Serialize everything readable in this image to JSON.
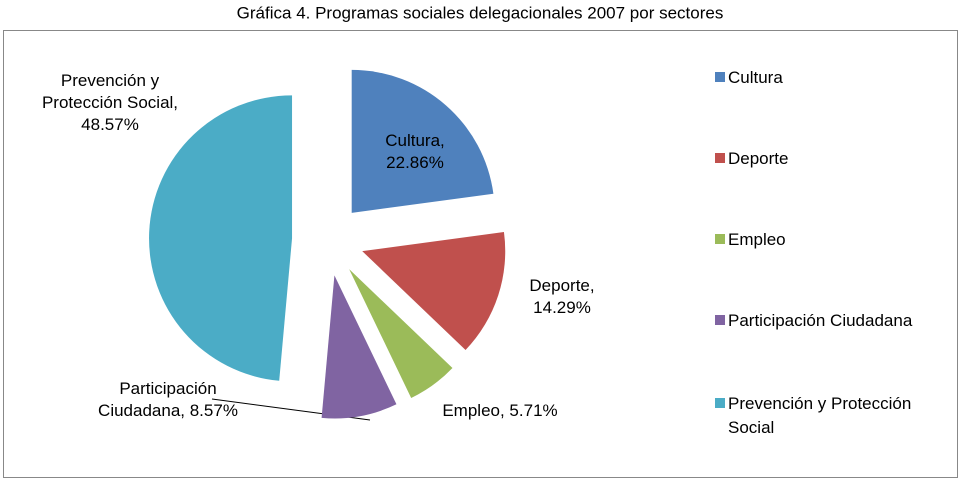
{
  "chart_data": {
    "type": "pie",
    "title": "Gráfica 4. Programas sociales delegacionales 2007 por sectores",
    "categories": [
      "Cultura",
      "Deporte",
      "Empleo",
      "Participación Ciudadana",
      "Prevención y Protección Social"
    ],
    "values": [
      22.86,
      14.29,
      5.71,
      8.57,
      48.57
    ],
    "value_labels": [
      "Cultura, 22.86%",
      "Deporte, 14.29%",
      "Empleo, 5.71%",
      "Participación Ciudadana, 8.57%",
      "Prevención y Protección Social, 48.57%"
    ],
    "colors": [
      "#4f81bd",
      "#c0504d",
      "#9bbb59",
      "#8064a2",
      "#4bacc6"
    ],
    "legend": "right"
  }
}
